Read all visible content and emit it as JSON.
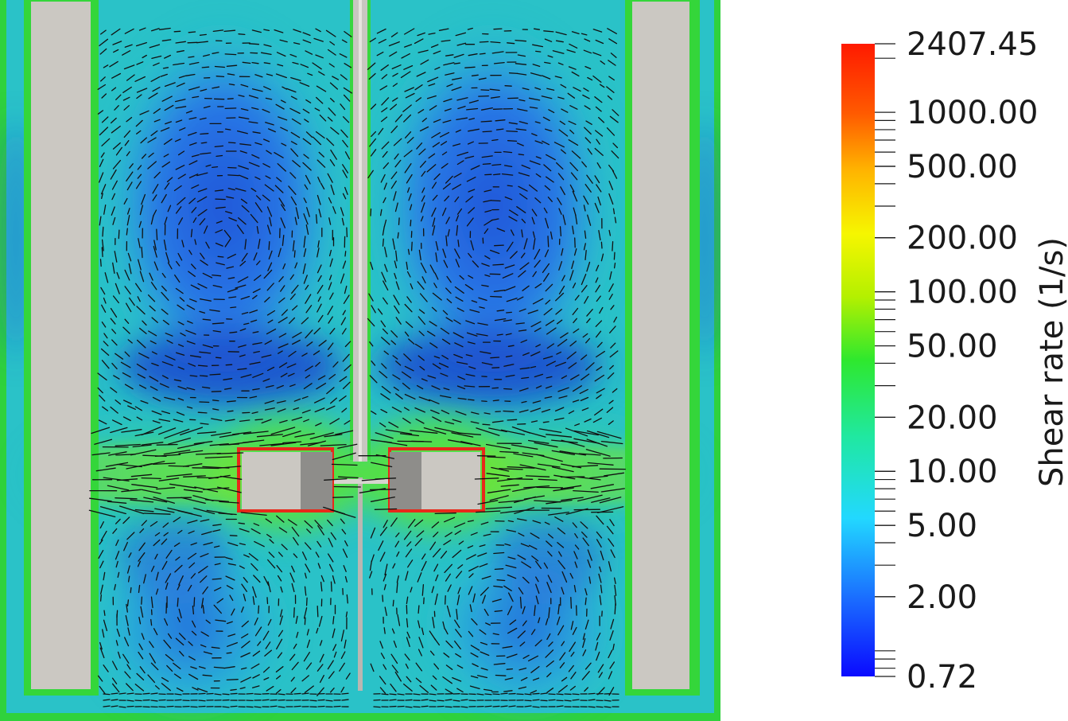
{
  "chart_data": {
    "type": "heatmap",
    "title": "",
    "colorbar": {
      "label": "Shear rate (1/s)",
      "scale": "log",
      "range": [
        0.72,
        2407.45
      ],
      "colormap": [
        "#0a0aff",
        "#1a6aff",
        "#22c8ff",
        "#20e8c0",
        "#2ee82e",
        "#b4f000",
        "#f6f600",
        "#ff9a00",
        "#ff1a00"
      ],
      "tick_labels": [
        "2407.45",
        "1000.00",
        "500.00",
        "200.00",
        "100.00",
        "50.00",
        "20.00",
        "10.00",
        "5.00",
        "2.00",
        "0.72"
      ],
      "tick_values": [
        2407.45,
        1000,
        500,
        200,
        100,
        50,
        20,
        10,
        5,
        2,
        0.72
      ],
      "position": "right"
    },
    "field": {
      "description_colors": {
        "high_shear": "#e8291a",
        "mid_shear": "#38d640",
        "low_shear": "#1a4fd6",
        "solid_wall": "#cbc8c2"
      },
      "vectors": "black velocity glyphs"
    }
  }
}
